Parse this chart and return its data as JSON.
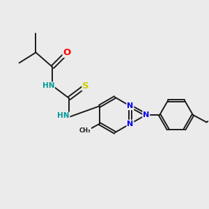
{
  "bg_color": "#ebebeb",
  "bond_color": "#1a1a1a",
  "bond_width": 1.4,
  "atom_colors": {
    "O": "#ff0000",
    "N": "#0000ee",
    "S": "#cccc00",
    "HN": "#009999",
    "C": "#1a1a1a"
  },
  "font_size": 8.5,
  "fig_size": [
    3.0,
    3.0
  ],
  "dpi": 100,
  "xlim": [
    0,
    10
  ],
  "ylim": [
    0,
    10
  ]
}
